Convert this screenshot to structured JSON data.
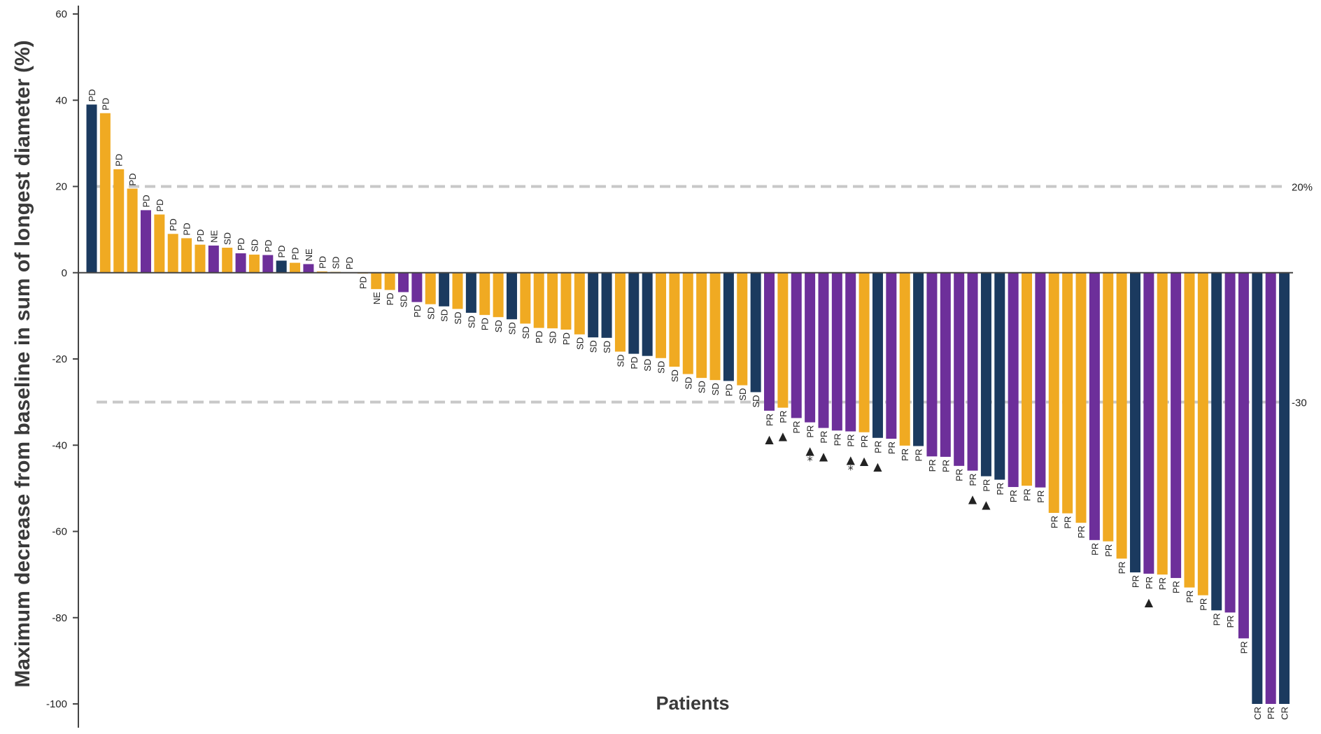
{
  "chart_data": {
    "type": "bar",
    "title": "",
    "xlabel": "Patients",
    "ylabel": "Maximum decrease from baseline in sum of longest diameter (%)",
    "ylim": [
      -100,
      60
    ],
    "yticks": [
      60,
      40,
      20,
      0,
      -20,
      -40,
      -60,
      -80,
      -100
    ],
    "ytick_labels": [
      "60",
      "40",
      "20",
      "0",
      "-20",
      "-40",
      "-60",
      "-80",
      "-100"
    ],
    "grid": false,
    "colors": {
      "navy": "#1b3a5f",
      "gold": "#f0aa22",
      "purple": "#6d2f9a",
      "ref_line": "#c8c8c8",
      "axis": "#444444"
    },
    "reference_lines": [
      {
        "value": 20,
        "label": "20%"
      },
      {
        "value": -30,
        "label": "-30"
      }
    ],
    "bars": [
      {
        "value": 39,
        "color": "navy",
        "label": "PD"
      },
      {
        "value": 37,
        "color": "gold",
        "label": "PD"
      },
      {
        "value": 24,
        "color": "gold",
        "label": "PD"
      },
      {
        "value": 19.5,
        "color": "gold",
        "label": "PD"
      },
      {
        "value": 14.5,
        "color": "purple",
        "label": "PD"
      },
      {
        "value": 13.5,
        "color": "gold",
        "label": "PD"
      },
      {
        "value": 9,
        "color": "gold",
        "label": "PD"
      },
      {
        "value": 8,
        "color": "gold",
        "label": "PD"
      },
      {
        "value": 6.5,
        "color": "gold",
        "label": "PD"
      },
      {
        "value": 6.3,
        "color": "purple",
        "label": "NE"
      },
      {
        "value": 5.8,
        "color": "gold",
        "label": "SD"
      },
      {
        "value": 4.5,
        "color": "purple",
        "label": "PD"
      },
      {
        "value": 4.2,
        "color": "gold",
        "label": "SD"
      },
      {
        "value": 4.1,
        "color": "purple",
        "label": "PD"
      },
      {
        "value": 2.8,
        "color": "navy",
        "label": "PD"
      },
      {
        "value": 2.3,
        "color": "gold",
        "label": "PD"
      },
      {
        "value": 2,
        "color": "purple",
        "label": "NE"
      },
      {
        "value": 0.3,
        "color": "gold",
        "label": "PD"
      },
      {
        "value": 0.2,
        "color": "gold",
        "label": "SD"
      },
      {
        "value": 0.1,
        "color": "gold",
        "label": "PD"
      },
      {
        "value": -0.2,
        "color": "gold",
        "label": "PD"
      },
      {
        "value": -3.8,
        "color": "gold",
        "label": "NE"
      },
      {
        "value": -4,
        "color": "gold",
        "label": "PD"
      },
      {
        "value": -4.5,
        "color": "purple",
        "label": "SD"
      },
      {
        "value": -6.8,
        "color": "purple",
        "label": "PD"
      },
      {
        "value": -7.3,
        "color": "gold",
        "label": "SD"
      },
      {
        "value": -7.8,
        "color": "navy",
        "label": "SD"
      },
      {
        "value": -8.4,
        "color": "gold",
        "label": "SD"
      },
      {
        "value": -9.3,
        "color": "navy",
        "label": "SD"
      },
      {
        "value": -9.8,
        "color": "gold",
        "label": "PD"
      },
      {
        "value": -10.3,
        "color": "gold",
        "label": "SD"
      },
      {
        "value": -10.8,
        "color": "navy",
        "label": "SD"
      },
      {
        "value": -11.8,
        "color": "gold",
        "label": "SD"
      },
      {
        "value": -12.8,
        "color": "gold",
        "label": "PD"
      },
      {
        "value": -12.9,
        "color": "gold",
        "label": "SD"
      },
      {
        "value": -13.2,
        "color": "gold",
        "label": "PD"
      },
      {
        "value": -14.3,
        "color": "gold",
        "label": "SD"
      },
      {
        "value": -15,
        "color": "navy",
        "label": "SD"
      },
      {
        "value": -15.1,
        "color": "navy",
        "label": "SD"
      },
      {
        "value": -18.3,
        "color": "gold",
        "label": "SD"
      },
      {
        "value": -18.8,
        "color": "navy",
        "label": "PD"
      },
      {
        "value": -19.3,
        "color": "navy",
        "label": "SD"
      },
      {
        "value": -19.8,
        "color": "gold",
        "label": "SD"
      },
      {
        "value": -21.8,
        "color": "gold",
        "label": "SD"
      },
      {
        "value": -23.5,
        "color": "gold",
        "label": "SD"
      },
      {
        "value": -24.4,
        "color": "gold",
        "label": "SD"
      },
      {
        "value": -24.9,
        "color": "gold",
        "label": "SD"
      },
      {
        "value": -25.1,
        "color": "navy",
        "label": "PD"
      },
      {
        "value": -26.1,
        "color": "gold",
        "label": "SD"
      },
      {
        "value": -27.7,
        "color": "navy",
        "label": "SD"
      },
      {
        "value": -32,
        "color": "purple",
        "label": "PR",
        "marker": "▲"
      },
      {
        "value": -31.3,
        "color": "gold",
        "label": "PR",
        "marker": "▲"
      },
      {
        "value": -33.7,
        "color": "purple",
        "label": "PR"
      },
      {
        "value": -34.7,
        "color": "purple",
        "label": "PR",
        "marker": "▲",
        "asterisk": true
      },
      {
        "value": -36,
        "color": "purple",
        "label": "PR",
        "marker": "▲"
      },
      {
        "value": -36.6,
        "color": "purple",
        "label": "PR"
      },
      {
        "value": -36.8,
        "color": "purple",
        "label": "PR",
        "marker": "▲",
        "asterisk": true
      },
      {
        "value": -37,
        "color": "gold",
        "label": "PR",
        "marker": "▲"
      },
      {
        "value": -38.3,
        "color": "navy",
        "label": "PR",
        "marker": "▲"
      },
      {
        "value": -38.5,
        "color": "purple",
        "label": "PR"
      },
      {
        "value": -40.1,
        "color": "gold",
        "label": "PR"
      },
      {
        "value": -40.2,
        "color": "navy",
        "label": "PR"
      },
      {
        "value": -42.6,
        "color": "purple",
        "label": "PR"
      },
      {
        "value": -42.7,
        "color": "purple",
        "label": "PR"
      },
      {
        "value": -44.8,
        "color": "purple",
        "label": "PR"
      },
      {
        "value": -45.9,
        "color": "purple",
        "label": "PR",
        "marker": "▲"
      },
      {
        "value": -47.2,
        "color": "navy",
        "label": "PR",
        "marker": "▲"
      },
      {
        "value": -48,
        "color": "navy",
        "label": "PR"
      },
      {
        "value": -49.7,
        "color": "purple",
        "label": "PR"
      },
      {
        "value": -49.4,
        "color": "gold",
        "label": "PR"
      },
      {
        "value": -49.8,
        "color": "purple",
        "label": "PR"
      },
      {
        "value": -55.7,
        "color": "gold",
        "label": "PR"
      },
      {
        "value": -55.8,
        "color": "gold",
        "label": "PR"
      },
      {
        "value": -58,
        "color": "gold",
        "label": "PR"
      },
      {
        "value": -62,
        "color": "purple",
        "label": "PR"
      },
      {
        "value": -62.3,
        "color": "gold",
        "label": "PR"
      },
      {
        "value": -66.3,
        "color": "gold",
        "label": "PR"
      },
      {
        "value": -69.5,
        "color": "navy",
        "label": "PR"
      },
      {
        "value": -69.8,
        "color": "purple",
        "label": "PR",
        "marker": "▲"
      },
      {
        "value": -70,
        "color": "gold",
        "label": "PR"
      },
      {
        "value": -70.8,
        "color": "purple",
        "label": "PR"
      },
      {
        "value": -73,
        "color": "gold",
        "label": "PR"
      },
      {
        "value": -74.8,
        "color": "gold",
        "label": "PR"
      },
      {
        "value": -78.3,
        "color": "navy",
        "label": "PR"
      },
      {
        "value": -78.8,
        "color": "purple",
        "label": "PR"
      },
      {
        "value": -84.8,
        "color": "purple",
        "label": "PR"
      },
      {
        "value": -100,
        "color": "navy",
        "label": "CR"
      },
      {
        "value": -100,
        "color": "purple",
        "label": "PR"
      },
      {
        "value": -100,
        "color": "navy",
        "label": "CR"
      }
    ]
  }
}
